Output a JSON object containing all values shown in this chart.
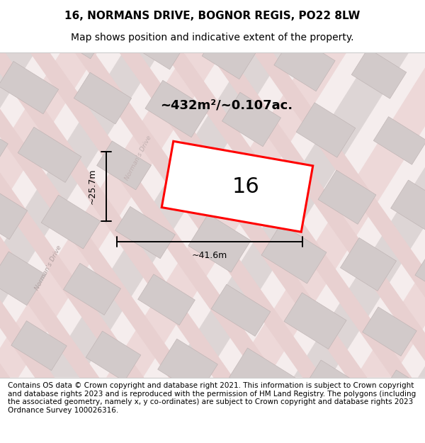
{
  "title": "16, NORMANS DRIVE, BOGNOR REGIS, PO22 8LW",
  "subtitle": "Map shows position and indicative extent of the property.",
  "footer": "Contains OS data © Crown copyright and database right 2021. This information is subject to Crown copyright and database rights 2023 and is reproduced with the permission of HM Land Registry. The polygons (including the associated geometry, namely x, y co-ordinates) are subject to Crown copyright and database rights 2023 Ordnance Survey 100026316.",
  "area_label": "~432m²/~0.107ac.",
  "width_label": "~41.6m",
  "height_label": "~25.7m",
  "plot_number": "16",
  "bg_color": "#f5f0f0",
  "map_bg": "#f5eded",
  "road_color": "#edd5d5",
  "building_color": "#d8d0d0",
  "highlight_color": "#ff0000",
  "title_fontsize": 11,
  "subtitle_fontsize": 10,
  "footer_fontsize": 7.5
}
